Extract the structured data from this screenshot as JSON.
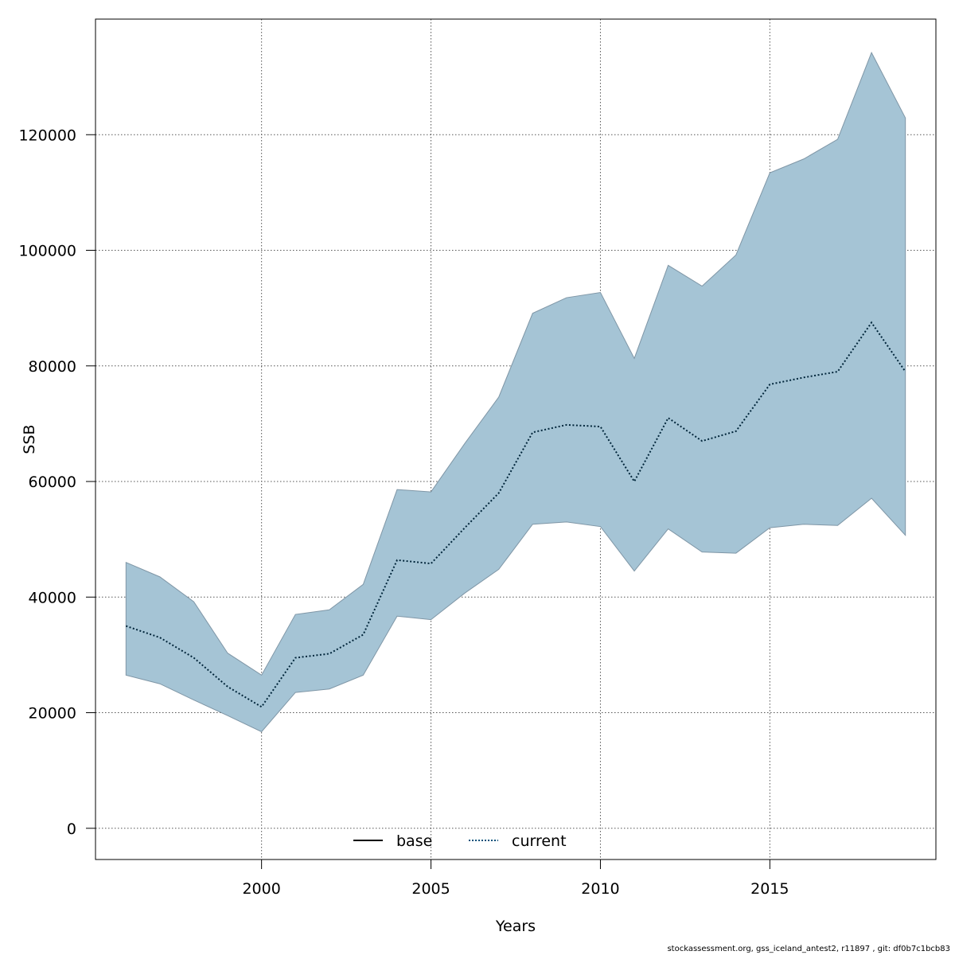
{
  "chart_data": {
    "type": "line",
    "xlabel": "Years",
    "ylabel": "SSB",
    "xlim": [
      1995.1,
      2019.9
    ],
    "ylim": [
      -5400,
      140000
    ],
    "x_ticks": [
      2000,
      2005,
      2010,
      2015
    ],
    "y_ticks": [
      0,
      20000,
      40000,
      60000,
      80000,
      100000,
      120000
    ],
    "grid": true,
    "legend": {
      "position": "bottom-center",
      "entries": [
        {
          "name": "base",
          "style": "solid",
          "color": "#000000"
        },
        {
          "name": "current",
          "style": "dotted",
          "color": "#00507a"
        }
      ]
    },
    "colors": {
      "band": "#a5c4d5",
      "band_edge": "#7f96a6",
      "current_line": "#00253a"
    },
    "x": [
      1996,
      1997,
      1998,
      1999,
      2000,
      2001,
      2002,
      2003,
      2004,
      2005,
      2006,
      2007,
      2008,
      2009,
      2010,
      2011,
      2012,
      2013,
      2014,
      2015,
      2016,
      2017,
      2018,
      2019
    ],
    "series": [
      {
        "name": "current",
        "values": [
          35000,
          33000,
          29500,
          24500,
          21000,
          29500,
          30200,
          33500,
          46400,
          45800,
          52000,
          58000,
          68500,
          69800,
          69500,
          60000,
          71000,
          67000,
          68700,
          76800,
          78000,
          79000,
          87500,
          79000
        ]
      },
      {
        "name": "base",
        "values": [
          35000,
          33000,
          29500,
          24500,
          21000,
          29500,
          30200,
          33500,
          46400,
          45800,
          52000,
          58000,
          68500,
          69800,
          69500,
          60000,
          71000,
          67000,
          68700,
          76800,
          78000,
          79000,
          87500,
          79000
        ]
      }
    ],
    "band": {
      "lower": [
        26500,
        25000,
        22200,
        19500,
        16700,
        23500,
        24100,
        26500,
        36700,
        36100,
        40700,
        44800,
        52600,
        53000,
        52200,
        44500,
        51800,
        47800,
        47600,
        52000,
        52600,
        52400,
        57100,
        50700
      ],
      "upper": [
        46000,
        43500,
        39200,
        30300,
        26500,
        37000,
        37800,
        42200,
        58600,
        58200,
        66600,
        74600,
        89100,
        91800,
        92700,
        81300,
        97400,
        93800,
        99200,
        113400,
        115800,
        119200,
        134200,
        122900
      ]
    }
  },
  "footer": "stockassessment.org, gss_iceland_antest2, r11897 , git: df0b7c1bcb83"
}
